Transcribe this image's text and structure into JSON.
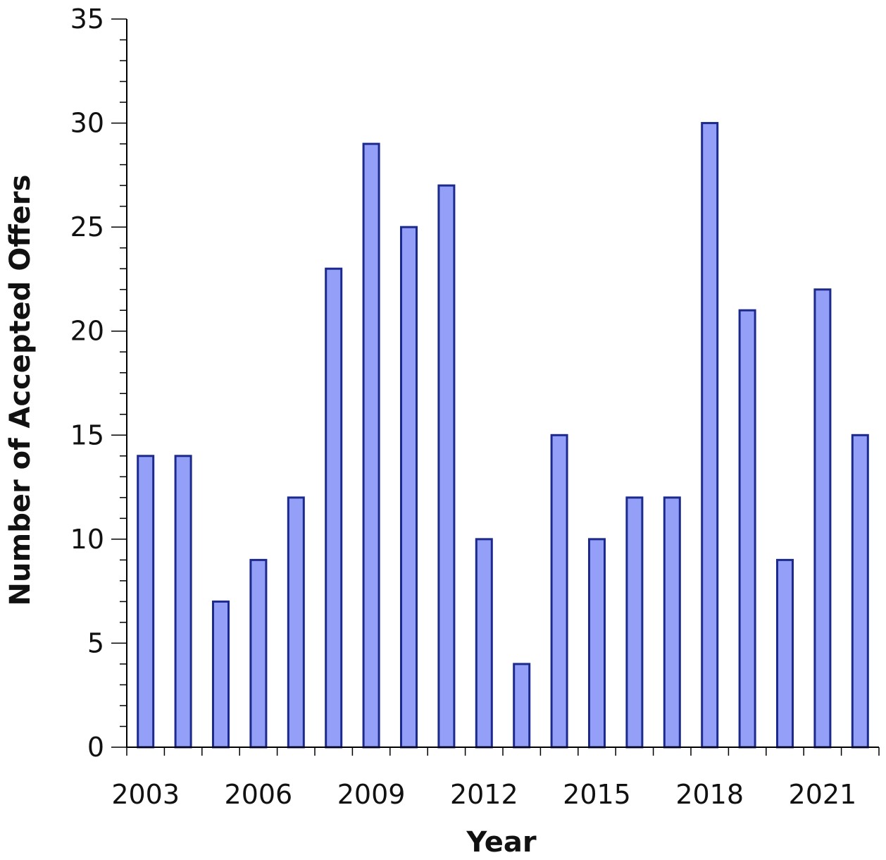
{
  "chart_data": {
    "type": "bar",
    "title": "",
    "xlabel": "Year",
    "ylabel": "Number of Accepted Offers",
    "categories": [
      "2003",
      "2004",
      "2005",
      "2006",
      "2007",
      "2008",
      "2009",
      "2010",
      "2011",
      "2012",
      "2013",
      "2014",
      "2015",
      "2016",
      "2017",
      "2018",
      "2019",
      "2020",
      "2021",
      "2022"
    ],
    "values": [
      14,
      14,
      7,
      9,
      12,
      23,
      29,
      25,
      27,
      10,
      4,
      15,
      10,
      12,
      12,
      30,
      21,
      9,
      22,
      15
    ],
    "x_tick_labels": [
      "2003",
      "2006",
      "2009",
      "2012",
      "2015",
      "2018",
      "2021"
    ],
    "y_ticks": [
      0,
      5,
      10,
      15,
      20,
      25,
      30,
      35
    ],
    "y_tick_labels": [
      "0",
      "5",
      "10",
      "15",
      "20",
      "25",
      "30",
      "35"
    ],
    "ylim": [
      0,
      35
    ],
    "y_minor_step": 1,
    "grid": false,
    "legend": "none",
    "colors": {
      "bar_fill": "#94a0f8",
      "bar_stroke": "#1b2a8c",
      "axis": "#000000"
    }
  }
}
